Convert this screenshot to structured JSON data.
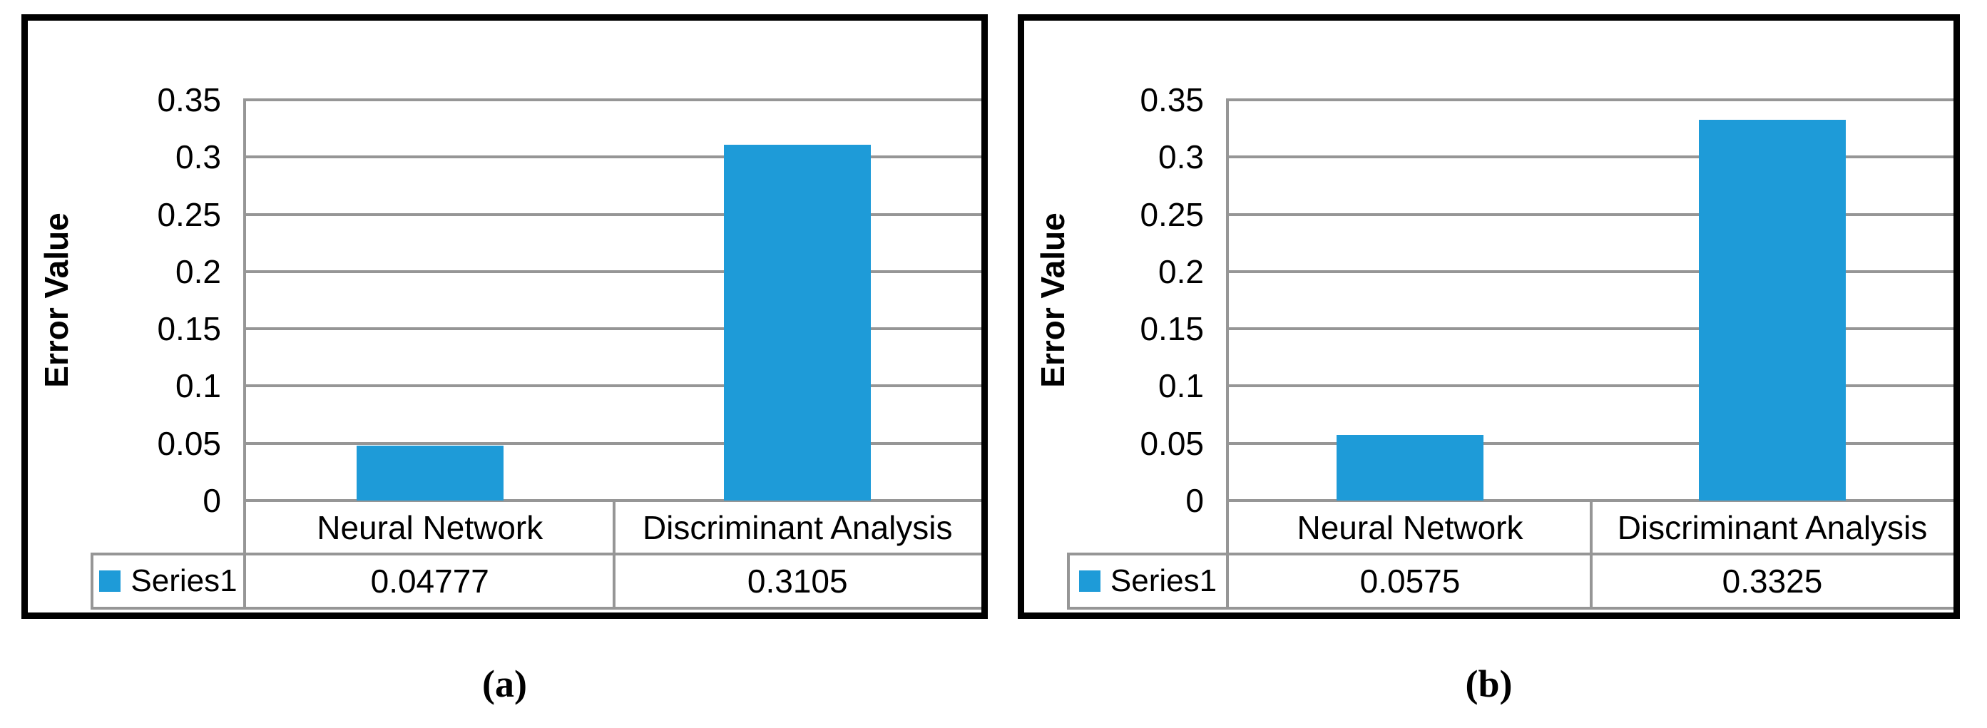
{
  "figure": {
    "background": "#ffffff",
    "captions": {
      "a": "(a)",
      "b": "(b)"
    }
  },
  "colors": {
    "bar_blue": "#1E9BD8",
    "gridline_gray": "#969696",
    "panel_border": "#000000",
    "text": "#000000"
  },
  "chart_data": [
    {
      "type": "bar",
      "panel_label": "(a)",
      "title": "",
      "ylabel": "Error Value",
      "categories": [
        "Neural Network",
        "Discriminant Analysis"
      ],
      "series": [
        {
          "name": "Series1",
          "values": [
            0.04777,
            0.3105
          ]
        }
      ],
      "value_labels": [
        "0.04777",
        "0.3105"
      ],
      "yticks": [
        "0",
        "0.05",
        "0.1",
        "0.15",
        "0.2",
        "0.25",
        "0.3",
        "0.35"
      ],
      "ylim": [
        0,
        0.35
      ],
      "grid": true,
      "legend_position": "data-table-left",
      "bar_color": "#1E9BD8"
    },
    {
      "type": "bar",
      "panel_label": "(b)",
      "title": "",
      "ylabel": "Error Value",
      "categories": [
        "Neural Network",
        "Discriminant Analysis"
      ],
      "series": [
        {
          "name": "Series1",
          "values": [
            0.0575,
            0.3325
          ]
        }
      ],
      "value_labels": [
        "0.0575",
        "0.3325"
      ],
      "yticks": [
        "0",
        "0.05",
        "0.1",
        "0.15",
        "0.2",
        "0.25",
        "0.3",
        "0.35"
      ],
      "ylim": [
        0,
        0.35
      ],
      "grid": true,
      "legend_position": "data-table-left",
      "bar_color": "#1E9BD8"
    }
  ]
}
